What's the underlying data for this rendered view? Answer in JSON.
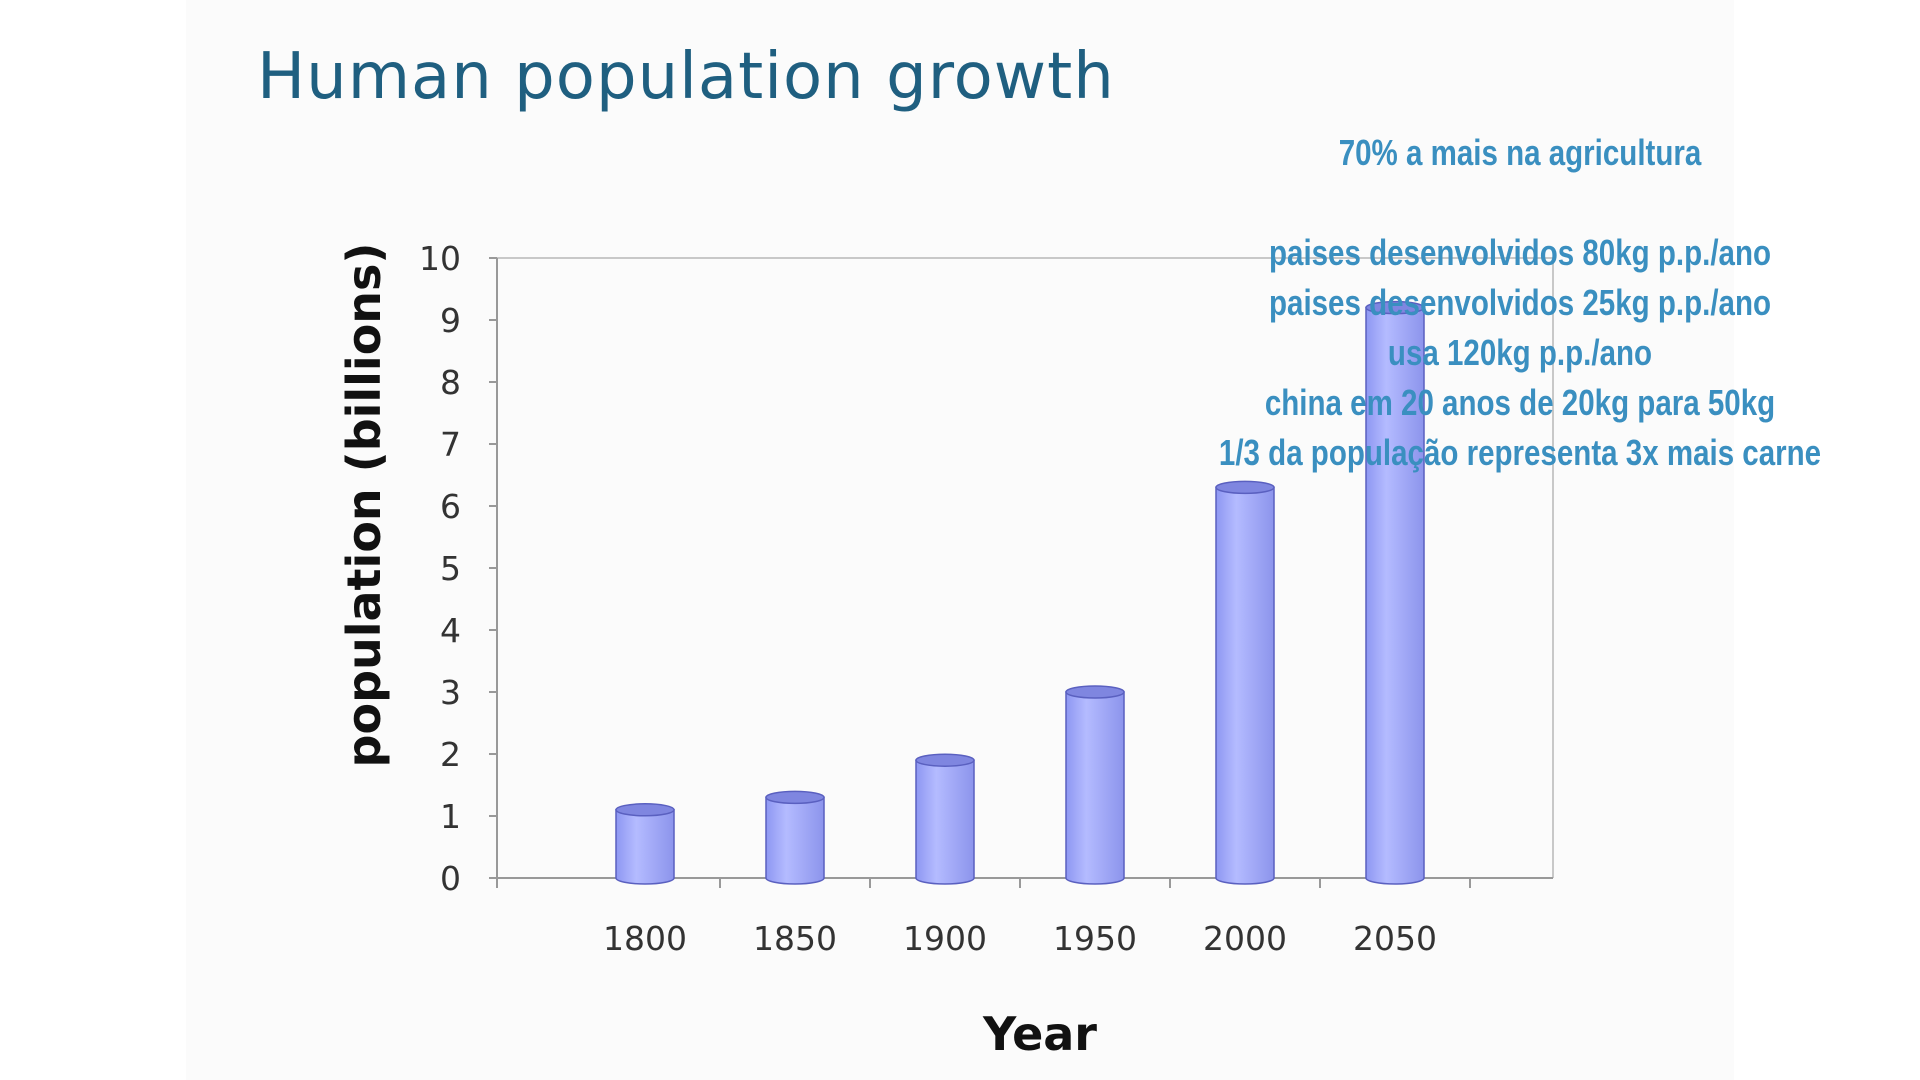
{
  "slide": {
    "title": "Human population growth"
  },
  "annotation": {
    "heading": "70% a mais na agricultura",
    "lines": [
      "paises desenvolvidos 80kg p.p./ano",
      "paises desenvolvidos 25kg p.p./ano",
      "usa 120kg p.p./ano",
      "china em 20 anos de 20kg para 50kg",
      "1/3 da população representa 3x mais carne"
    ],
    "color": "#3a8fc0"
  },
  "chart_data": {
    "type": "bar",
    "title": "Human population growth",
    "xlabel": "Year",
    "ylabel": "population (billions)",
    "categories": [
      "1800",
      "1850",
      "1900",
      "1950",
      "2000",
      "2050"
    ],
    "values": [
      1.1,
      1.3,
      1.9,
      3.0,
      6.3,
      9.2
    ],
    "ylim": [
      0,
      10
    ],
    "yticks": [
      0,
      1,
      2,
      3,
      4,
      5,
      6,
      7,
      8,
      9,
      10
    ],
    "grid": false,
    "bar_color": "#a0a8f8",
    "bar_edge_color": "#5a60c0"
  }
}
